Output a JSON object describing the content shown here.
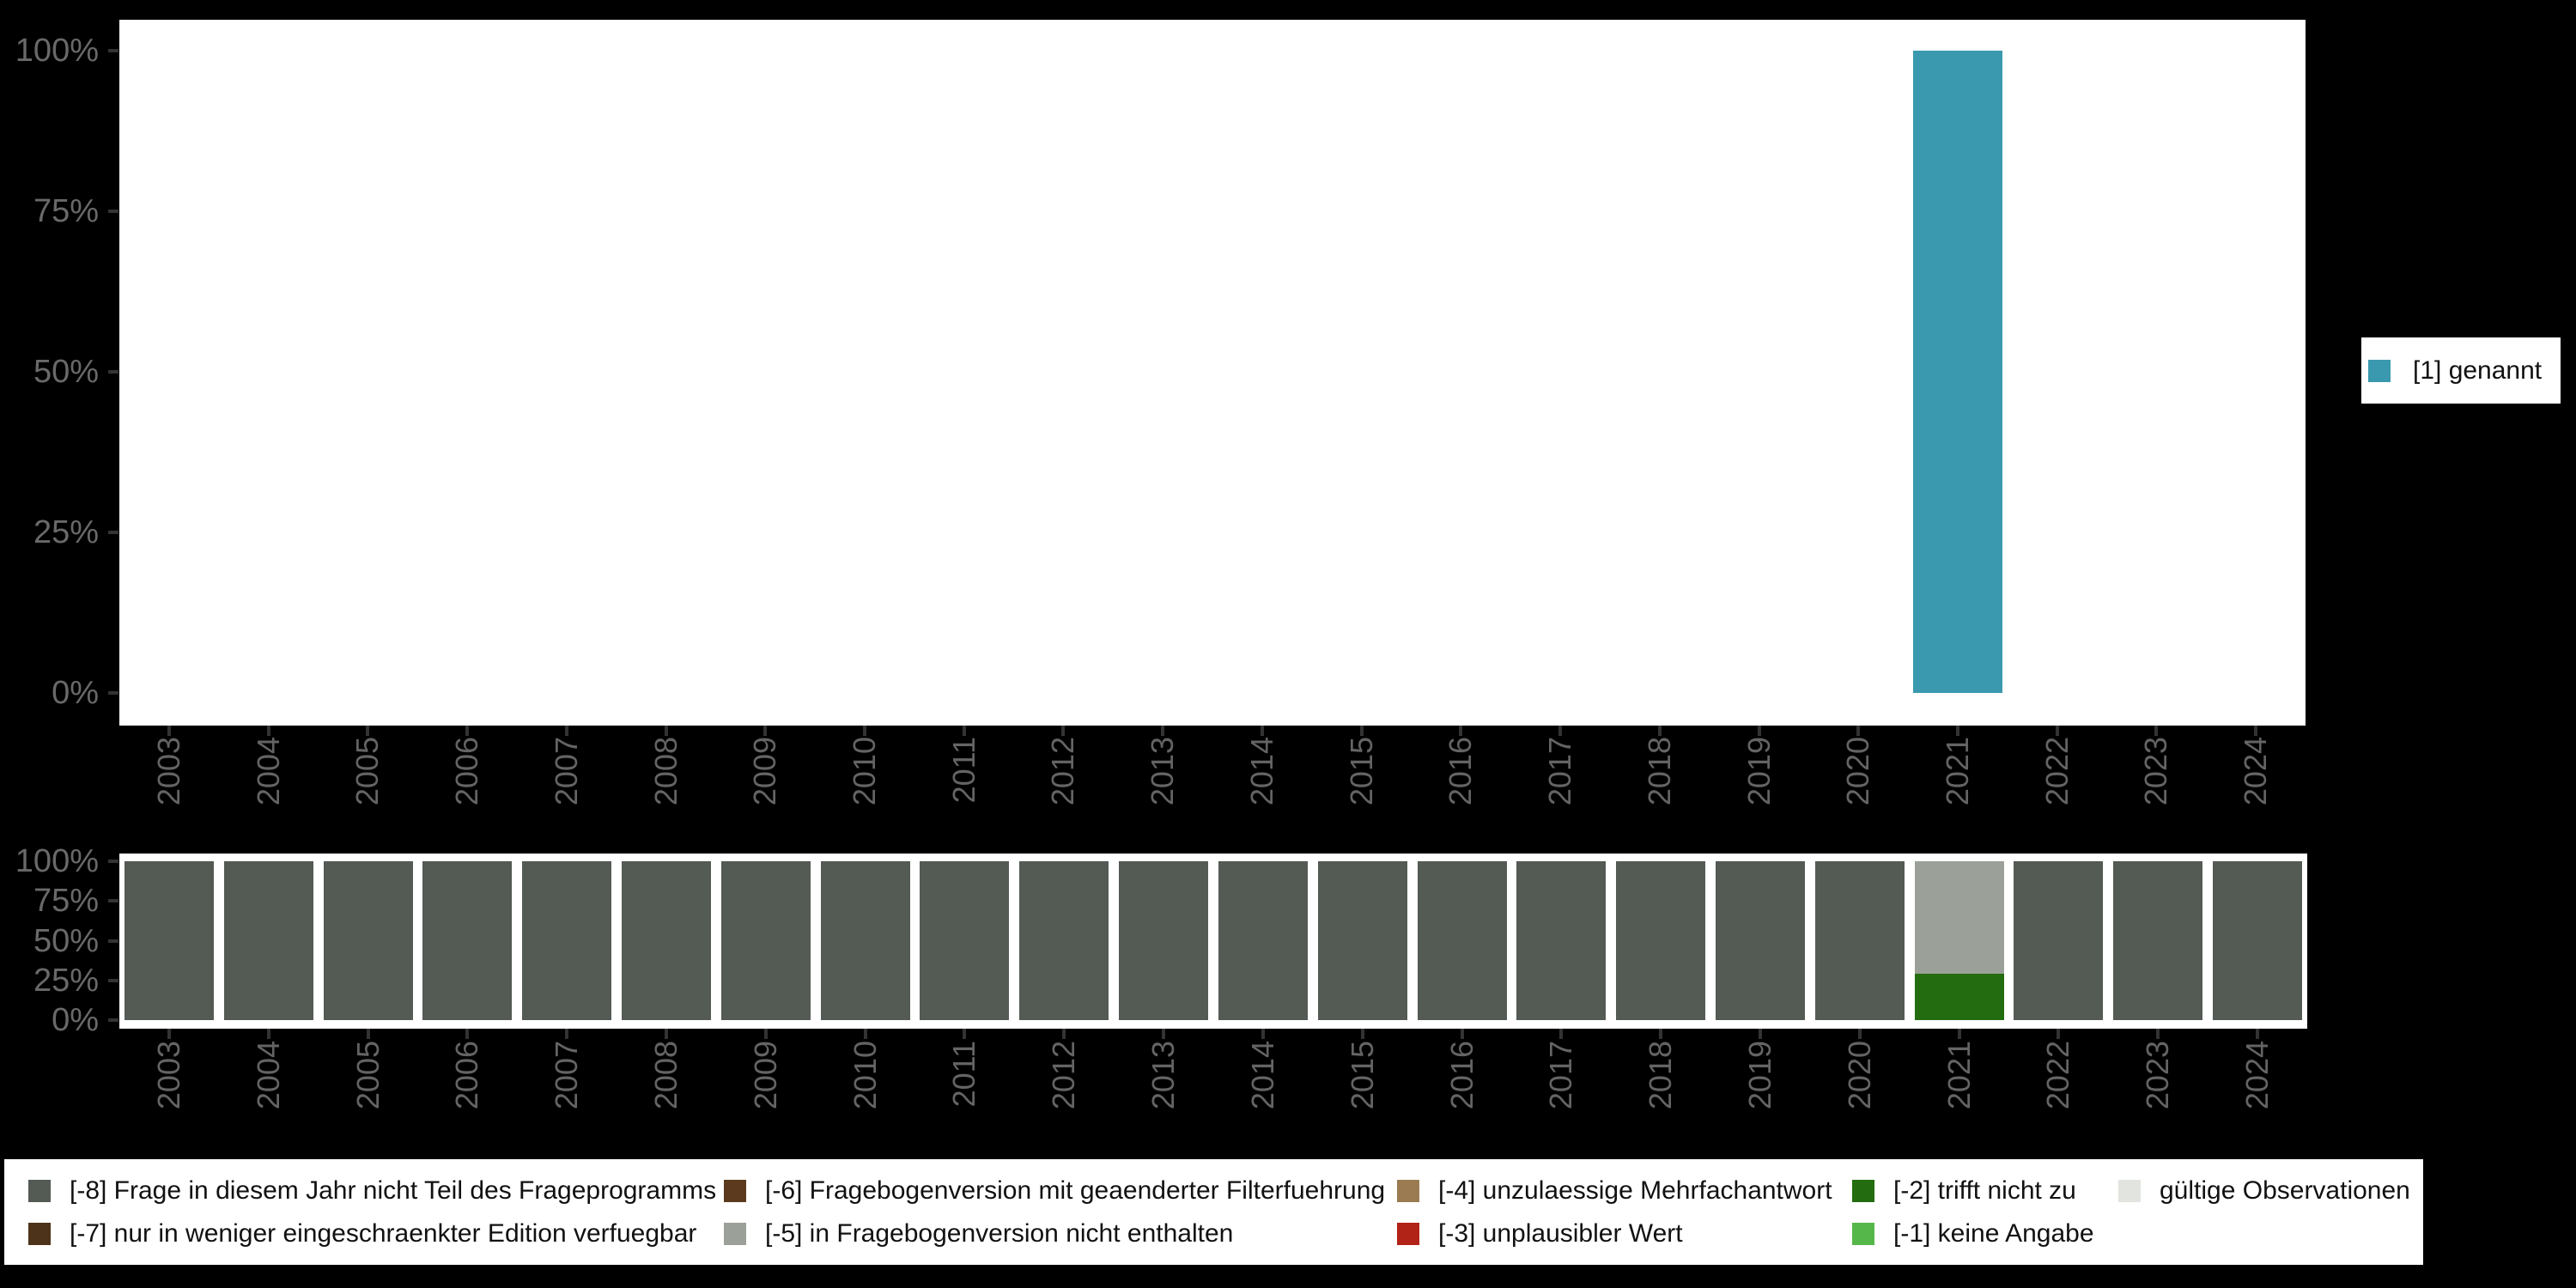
{
  "background_color": "#000000",
  "axis": {
    "tick_color": "#333333",
    "label_color": "#696969",
    "ytick_labels": [
      "0%",
      "25%",
      "50%",
      "75%",
      "100%"
    ],
    "ytick_pcts": [
      0,
      25,
      50,
      75,
      100
    ]
  },
  "chart_data": [
    {
      "type": "bar",
      "title": "",
      "xlabel": "",
      "ylabel": "",
      "ylim": [
        0,
        100
      ],
      "grid": false,
      "legend_position": "right",
      "categories": [
        "2003",
        "2004",
        "2005",
        "2006",
        "2007",
        "2008",
        "2009",
        "2010",
        "2011",
        "2012",
        "2013",
        "2014",
        "2015",
        "2016",
        "2017",
        "2018",
        "2019",
        "2020",
        "2021",
        "2022",
        "2023",
        "2024"
      ],
      "series": [
        {
          "name": "[1] genannt",
          "color": "#3A99AE",
          "values": [
            0,
            0,
            0,
            0,
            0,
            0,
            0,
            0,
            0,
            0,
            0,
            0,
            0,
            0,
            0,
            0,
            0,
            0,
            100,
            0,
            0,
            0
          ]
        }
      ]
    },
    {
      "type": "stacked-bar",
      "title": "",
      "xlabel": "",
      "ylabel": "",
      "ylim": [
        0,
        100
      ],
      "grid": false,
      "legend_position": "bottom",
      "categories": [
        "2003",
        "2004",
        "2005",
        "2006",
        "2007",
        "2008",
        "2009",
        "2010",
        "2011",
        "2012",
        "2013",
        "2014",
        "2015",
        "2016",
        "2017",
        "2018",
        "2019",
        "2020",
        "2021",
        "2022",
        "2023",
        "2024"
      ],
      "series": [
        {
          "name": "[-8] Frage in diesem Jahr nicht Teil des Frageprogramms",
          "color": "#545A54",
          "values": [
            100,
            100,
            100,
            100,
            100,
            100,
            100,
            100,
            100,
            100,
            100,
            100,
            100,
            100,
            100,
            100,
            100,
            100,
            0,
            100,
            100,
            100
          ]
        },
        {
          "name": "[-2] trifft nicht zu",
          "color": "#246C10",
          "values": [
            0,
            0,
            0,
            0,
            0,
            0,
            0,
            0,
            0,
            0,
            0,
            0,
            0,
            0,
            0,
            0,
            0,
            0,
            29,
            0,
            0,
            0
          ]
        },
        {
          "name": "[-5] in Fragebogenversion nicht enthalten",
          "color": "#9BA199",
          "values": [
            0,
            0,
            0,
            0,
            0,
            0,
            0,
            0,
            0,
            0,
            0,
            0,
            0,
            0,
            0,
            0,
            0,
            0,
            71,
            0,
            0,
            0
          ]
        }
      ]
    }
  ],
  "top_legend": {
    "items": [
      {
        "label": "[1] genannt",
        "color": "#3A99AE"
      }
    ]
  },
  "missing_legend": {
    "items": [
      {
        "label": "[-8] Frage in diesem Jahr nicht Teil des Frageprogramms",
        "color": "#545A54"
      },
      {
        "label": "[-7] nur in weniger eingeschraenkter Edition verfuegbar",
        "color": "#4C331A"
      },
      {
        "label": "[-6] Fragebogenversion mit geaenderter Filterfuehrung",
        "color": "#5C3A1D"
      },
      {
        "label": "[-5] in Fragebogenversion nicht enthalten",
        "color": "#9BA199"
      },
      {
        "label": "[-4] unzulaessige Mehrfachantwort",
        "color": "#9A7B52"
      },
      {
        "label": "[-3] unplausibler Wert",
        "color": "#B12217"
      },
      {
        "label": "[-2] trifft nicht zu",
        "color": "#246C10"
      },
      {
        "label": "[-1] keine Angabe",
        "color": "#55B74A"
      },
      {
        "label": "gültige Observationen",
        "color": "#E2E5DF"
      }
    ]
  }
}
